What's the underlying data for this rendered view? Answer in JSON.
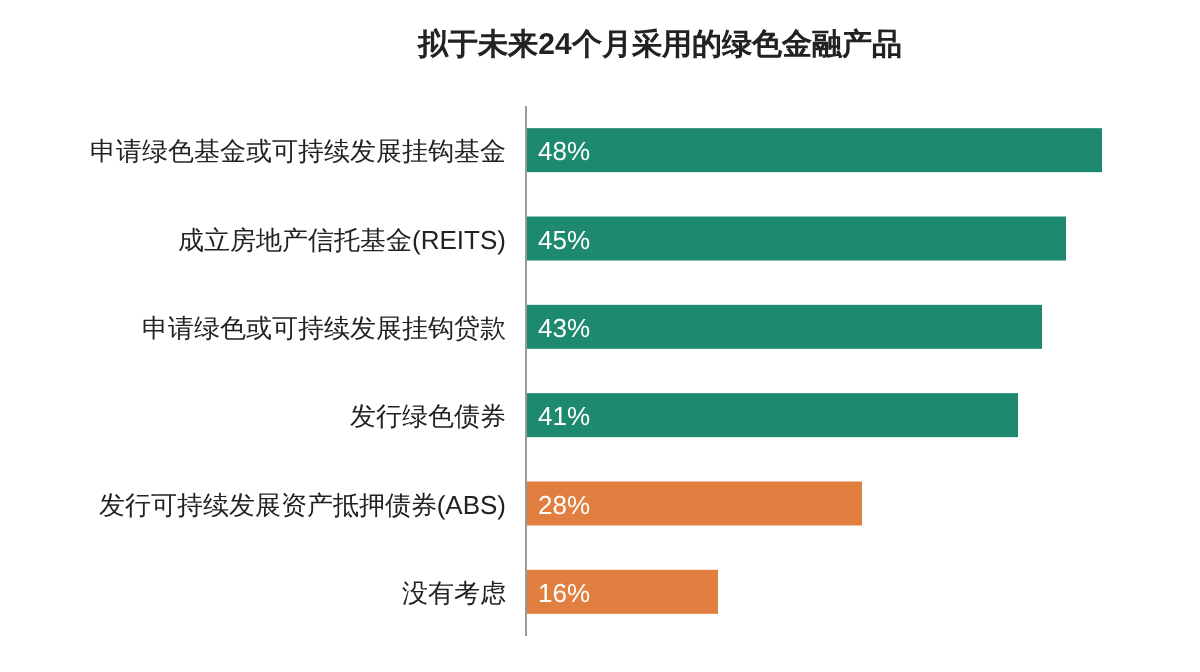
{
  "chart_data": {
    "type": "bar",
    "orientation": "horizontal",
    "title": "拟于未来24个月采用的绿色金融产品",
    "categories": [
      "申请绿色基金或可持续发展挂钩基金",
      "成立房地产信托基金(REITS)",
      "申请绿色或可持续发展挂钩贷款",
      "发行绿色债券",
      "发行可持续发展资产抵押债券(ABS)",
      "没有考虑"
    ],
    "values": [
      48,
      45,
      43,
      41,
      28,
      16
    ],
    "colors": [
      "#1d8a6f",
      "#1d8a6f",
      "#1d8a6f",
      "#1d8a6f",
      "#e07f40",
      "#e07f40"
    ],
    "value_labels": [
      "48%",
      "45%",
      "43%",
      "41%",
      "28%",
      "16%"
    ]
  }
}
